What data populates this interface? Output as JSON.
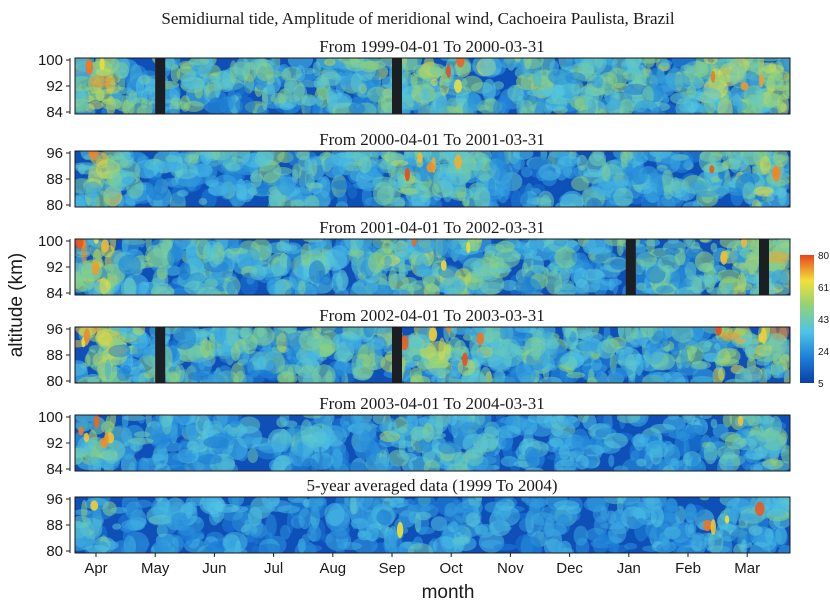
{
  "chart_data": {
    "type": "heatmap",
    "title": "Semidiurnal tide, Amplitude of meridional wind, Cachoeira Paulista, Brazil",
    "xlabel": "month",
    "ylabel": "altitude (km)",
    "x_ticks": [
      "Apr",
      "May",
      "Jun",
      "Jul",
      "Aug",
      "Sep",
      "Oct",
      "Nov",
      "Dec",
      "Jan",
      "Feb",
      "Mar"
    ],
    "colorbar": {
      "ticks": [
        "5",
        "24",
        "43",
        "61",
        "80"
      ],
      "range": [
        5,
        80
      ],
      "colors": [
        "#0a3fa8",
        "#1d7fd8",
        "#4fc4e6",
        "#8ed27a",
        "#f2e03a",
        "#e8451e"
      ]
    },
    "panels": [
      {
        "subtitle": "From 1999-04-01 To 2000-03-31",
        "yticks": [
          "100",
          "92",
          "84"
        ],
        "ylim": [
          80,
          100
        ],
        "gaps_month_index": [
          1.05,
          5.05
        ],
        "activity": 1.0
      },
      {
        "subtitle": "From 2000-04-01 To 2001-03-31",
        "yticks": [
          "96",
          "88",
          "80"
        ],
        "ylim": [
          80,
          98
        ],
        "gaps_month_index": [],
        "activity": 0.85
      },
      {
        "subtitle": "From 2001-04-01 To 2002-03-31",
        "yticks": [
          "100",
          "92",
          "84"
        ],
        "ylim": [
          80,
          100
        ],
        "gaps_month_index": [
          9.0,
          11.25
        ],
        "activity": 0.95
      },
      {
        "subtitle": "From 2002-04-01 To 2003-03-31",
        "yticks": [
          "96",
          "88",
          "80"
        ],
        "ylim": [
          80,
          98
        ],
        "gaps_month_index": [
          1.05,
          5.05
        ],
        "activity": 1.0
      },
      {
        "subtitle": "From 2003-04-01 To 2004-03-31",
        "yticks": [
          "100",
          "92",
          "84"
        ],
        "ylim": [
          80,
          100
        ],
        "gaps_month_index": [],
        "activity": 0.7
      },
      {
        "subtitle": "5-year averaged data (1999 To 2004)",
        "yticks": [
          "96",
          "88",
          "80"
        ],
        "ylim": [
          80,
          98
        ],
        "gaps_month_index": [],
        "activity": 0.55
      }
    ]
  }
}
